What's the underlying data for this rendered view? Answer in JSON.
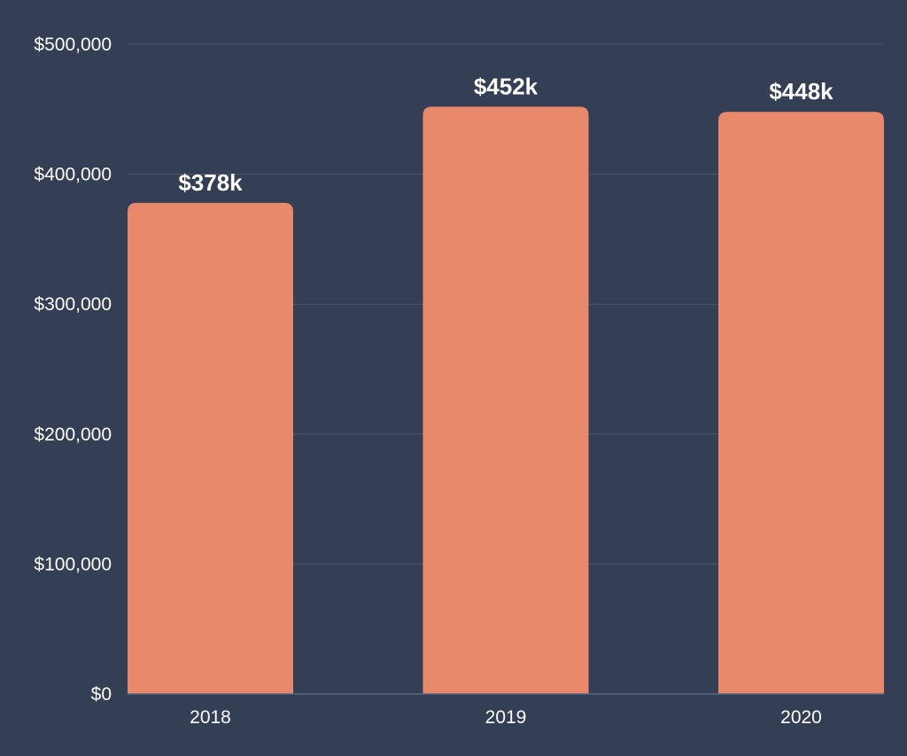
{
  "chart_data": {
    "type": "bar",
    "categories": [
      "2018",
      "2019",
      "2020"
    ],
    "values": [
      378000,
      452000,
      448000
    ],
    "data_labels": [
      "$378k",
      "$452k",
      "$448k"
    ],
    "title": "",
    "xlabel": "",
    "ylabel": "",
    "ylim": [
      0,
      500000
    ],
    "yticks": [
      0,
      100000,
      200000,
      300000,
      400000,
      500000
    ],
    "ytick_labels": [
      "$0",
      "$100,000",
      "$200,000",
      "$300,000",
      "$400,000",
      "$500,000"
    ],
    "grid": true,
    "legend": "none",
    "colors": {
      "background": "#343e55",
      "bar": "#e9896c",
      "text": "#ffffff"
    }
  }
}
